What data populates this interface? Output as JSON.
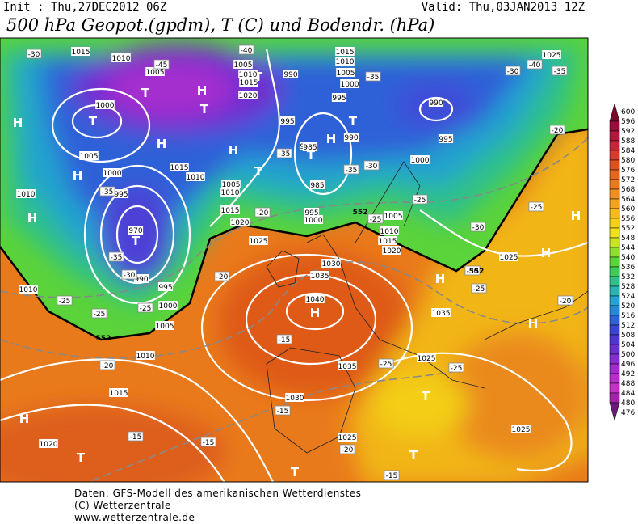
{
  "header": {
    "init": "Init : Thu,27DEC2012 06Z",
    "valid": "Valid: Thu,03JAN2013 12Z",
    "title": "500 hPa Geopot.(gpdm), T (C) und Bodendr. (hPa)"
  },
  "colorbar": {
    "ticks": [
      600,
      596,
      592,
      588,
      584,
      580,
      576,
      572,
      568,
      564,
      560,
      556,
      552,
      548,
      544,
      540,
      536,
      532,
      528,
      524,
      520,
      516,
      512,
      508,
      504,
      500,
      496,
      492,
      488,
      484,
      480,
      476
    ]
  },
  "map": {
    "centers": [
      "H",
      "H",
      "H",
      "H",
      "H",
      "H",
      "H",
      "H",
      "H",
      "H",
      "H",
      "H",
      "H",
      "T",
      "T",
      "T",
      "T",
      "T",
      "T",
      "T",
      "T",
      "T",
      "T",
      "T",
      "T"
    ],
    "isobar_labels": [
      "1015",
      "1010",
      "1005",
      "1000",
      "1005",
      "1000",
      "995",
      "990",
      "995",
      "1000",
      "1005",
      "1010",
      "1015",
      "1020",
      "1010",
      "1010",
      "1015",
      "1010",
      "1005",
      "1010",
      "1015",
      "1020",
      "1025",
      "1030",
      "1035",
      "1040",
      "1035",
      "1030",
      "1025",
      "1025",
      "1025",
      "1035",
      "1025",
      "1020",
      "1015",
      "1010",
      "1005",
      "1000",
      "995",
      "985",
      "990",
      "995",
      "1015",
      "1010",
      "1005",
      "1020",
      "990",
      "995",
      "1000",
      "1005",
      "1010",
      "1015",
      "990",
      "995",
      "1000",
      "990",
      "985",
      "1025",
      "970"
    ],
    "temperature_labels": [
      "-30",
      "-35",
      "-35",
      "-30",
      "-25",
      "-25",
      "-25",
      "-20",
      "-15",
      "-15",
      "-15",
      "-15",
      "-15",
      "-20",
      "-25",
      "-25",
      "-25",
      "-20",
      "-25",
      "-20",
      "-25",
      "-30",
      "-30",
      "-35",
      "-40",
      "-35",
      "-40",
      "-45",
      "-35",
      "-30",
      "-35",
      "-25",
      "-20",
      "-20",
      "-30"
    ],
    "contour_552_labels": [
      "552",
      "552",
      "552"
    ]
  },
  "footer": {
    "lines": [
      "Daten: GFS-Modell des amerikanischen Wetterdienstes",
      "(C) Wetterzentrale",
      "www.wetterzentrale.de"
    ]
  }
}
